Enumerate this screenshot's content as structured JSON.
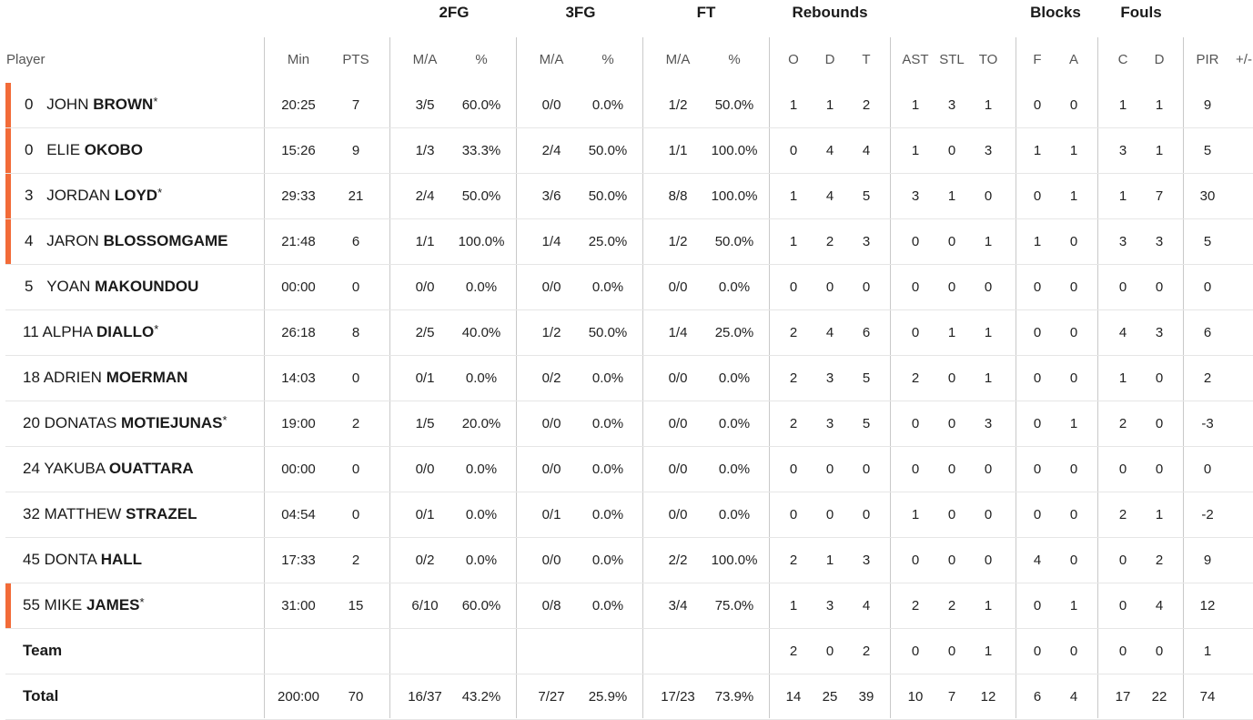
{
  "groups": [
    {
      "key": "2fg",
      "label": "2FG"
    },
    {
      "key": "3fg",
      "label": "3FG"
    },
    {
      "key": "ft",
      "label": "FT"
    },
    {
      "key": "reb",
      "label": "Rebounds"
    },
    {
      "key": "blk",
      "label": "Blocks"
    },
    {
      "key": "fouls",
      "label": "Fouls"
    }
  ],
  "columns": {
    "player": "Player",
    "min": "Min",
    "pts": "PTS",
    "fg2_ma": "M/A",
    "fg2_pct": "%",
    "fg3_ma": "M/A",
    "fg3_pct": "%",
    "ft_ma": "M/A",
    "ft_pct": "%",
    "reb_o": "O",
    "reb_d": "D",
    "reb_t": "T",
    "ast": "AST",
    "stl": "STL",
    "to": "TO",
    "blk_f": "F",
    "blk_a": "A",
    "foul_c": "C",
    "foul_d": "D",
    "pir": "PIR",
    "pm": "+/-"
  },
  "accent_color": "#f26b38",
  "players": [
    {
      "num": "0",
      "first": "JOHN",
      "last": "BROWN",
      "starter": true,
      "star": "*",
      "min": "20:25",
      "pts": "7",
      "fg2_ma": "3/5",
      "fg2_pct": "60.0%",
      "fg3_ma": "0/0",
      "fg3_pct": "0.0%",
      "ft_ma": "1/2",
      "ft_pct": "50.0%",
      "reb_o": "1",
      "reb_d": "1",
      "reb_t": "2",
      "ast": "1",
      "stl": "3",
      "to": "1",
      "blk_f": "0",
      "blk_a": "0",
      "foul_c": "1",
      "foul_d": "1",
      "pir": "9"
    },
    {
      "num": "0",
      "first": "ELIE",
      "last": "OKOBO",
      "starter": true,
      "star": "",
      "min": "15:26",
      "pts": "9",
      "fg2_ma": "1/3",
      "fg2_pct": "33.3%",
      "fg3_ma": "2/4",
      "fg3_pct": "50.0%",
      "ft_ma": "1/1",
      "ft_pct": "100.0%",
      "reb_o": "0",
      "reb_d": "4",
      "reb_t": "4",
      "ast": "1",
      "stl": "0",
      "to": "3",
      "blk_f": "1",
      "blk_a": "1",
      "foul_c": "3",
      "foul_d": "1",
      "pir": "5"
    },
    {
      "num": "3",
      "first": "JORDAN",
      "last": "LOYD",
      "starter": true,
      "star": "*",
      "min": "29:33",
      "pts": "21",
      "fg2_ma": "2/4",
      "fg2_pct": "50.0%",
      "fg3_ma": "3/6",
      "fg3_pct": "50.0%",
      "ft_ma": "8/8",
      "ft_pct": "100.0%",
      "reb_o": "1",
      "reb_d": "4",
      "reb_t": "5",
      "ast": "3",
      "stl": "1",
      "to": "0",
      "blk_f": "0",
      "blk_a": "1",
      "foul_c": "1",
      "foul_d": "7",
      "pir": "30"
    },
    {
      "num": "4",
      "first": "JARON",
      "last": "BLOSSOMGAME",
      "starter": true,
      "star": "",
      "min": "21:48",
      "pts": "6",
      "fg2_ma": "1/1",
      "fg2_pct": "100.0%",
      "fg3_ma": "1/4",
      "fg3_pct": "25.0%",
      "ft_ma": "1/2",
      "ft_pct": "50.0%",
      "reb_o": "1",
      "reb_d": "2",
      "reb_t": "3",
      "ast": "0",
      "stl": "0",
      "to": "1",
      "blk_f": "1",
      "blk_a": "0",
      "foul_c": "3",
      "foul_d": "3",
      "pir": "5"
    },
    {
      "num": "5",
      "first": "YOAN",
      "last": "MAKOUNDOU",
      "starter": false,
      "star": "",
      "min": "00:00",
      "pts": "0",
      "fg2_ma": "0/0",
      "fg2_pct": "0.0%",
      "fg3_ma": "0/0",
      "fg3_pct": "0.0%",
      "ft_ma": "0/0",
      "ft_pct": "0.0%",
      "reb_o": "0",
      "reb_d": "0",
      "reb_t": "0",
      "ast": "0",
      "stl": "0",
      "to": "0",
      "blk_f": "0",
      "blk_a": "0",
      "foul_c": "0",
      "foul_d": "0",
      "pir": "0"
    },
    {
      "num": "11",
      "first": "ALPHA",
      "last": "DIALLO",
      "starter": false,
      "star": "*",
      "min": "26:18",
      "pts": "8",
      "fg2_ma": "2/5",
      "fg2_pct": "40.0%",
      "fg3_ma": "1/2",
      "fg3_pct": "50.0%",
      "ft_ma": "1/4",
      "ft_pct": "25.0%",
      "reb_o": "2",
      "reb_d": "4",
      "reb_t": "6",
      "ast": "0",
      "stl": "1",
      "to": "1",
      "blk_f": "0",
      "blk_a": "0",
      "foul_c": "4",
      "foul_d": "3",
      "pir": "6"
    },
    {
      "num": "18",
      "first": "ADRIEN",
      "last": "MOERMAN",
      "starter": false,
      "star": "",
      "min": "14:03",
      "pts": "0",
      "fg2_ma": "0/1",
      "fg2_pct": "0.0%",
      "fg3_ma": "0/2",
      "fg3_pct": "0.0%",
      "ft_ma": "0/0",
      "ft_pct": "0.0%",
      "reb_o": "2",
      "reb_d": "3",
      "reb_t": "5",
      "ast": "2",
      "stl": "0",
      "to": "1",
      "blk_f": "0",
      "blk_a": "0",
      "foul_c": "1",
      "foul_d": "0",
      "pir": "2"
    },
    {
      "num": "20",
      "first": "DONATAS",
      "last": "MOTIEJUNAS",
      "starter": false,
      "star": "*",
      "min": "19:00",
      "pts": "2",
      "fg2_ma": "1/5",
      "fg2_pct": "20.0%",
      "fg3_ma": "0/0",
      "fg3_pct": "0.0%",
      "ft_ma": "0/0",
      "ft_pct": "0.0%",
      "reb_o": "2",
      "reb_d": "3",
      "reb_t": "5",
      "ast": "0",
      "stl": "0",
      "to": "3",
      "blk_f": "0",
      "blk_a": "1",
      "foul_c": "2",
      "foul_d": "0",
      "pir": "-3"
    },
    {
      "num": "24",
      "first": "YAKUBA",
      "last": "OUATTARA",
      "starter": false,
      "star": "",
      "min": "00:00",
      "pts": "0",
      "fg2_ma": "0/0",
      "fg2_pct": "0.0%",
      "fg3_ma": "0/0",
      "fg3_pct": "0.0%",
      "ft_ma": "0/0",
      "ft_pct": "0.0%",
      "reb_o": "0",
      "reb_d": "0",
      "reb_t": "0",
      "ast": "0",
      "stl": "0",
      "to": "0",
      "blk_f": "0",
      "blk_a": "0",
      "foul_c": "0",
      "foul_d": "0",
      "pir": "0"
    },
    {
      "num": "32",
      "first": "MATTHEW",
      "last": "STRAZEL",
      "starter": false,
      "star": "",
      "min": "04:54",
      "pts": "0",
      "fg2_ma": "0/1",
      "fg2_pct": "0.0%",
      "fg3_ma": "0/1",
      "fg3_pct": "0.0%",
      "ft_ma": "0/0",
      "ft_pct": "0.0%",
      "reb_o": "0",
      "reb_d": "0",
      "reb_t": "0",
      "ast": "1",
      "stl": "0",
      "to": "0",
      "blk_f": "0",
      "blk_a": "0",
      "foul_c": "2",
      "foul_d": "1",
      "pir": "-2"
    },
    {
      "num": "45",
      "first": "DONTA",
      "last": "HALL",
      "starter": false,
      "star": "",
      "min": "17:33",
      "pts": "2",
      "fg2_ma": "0/2",
      "fg2_pct": "0.0%",
      "fg3_ma": "0/0",
      "fg3_pct": "0.0%",
      "ft_ma": "2/2",
      "ft_pct": "100.0%",
      "reb_o": "2",
      "reb_d": "1",
      "reb_t": "3",
      "ast": "0",
      "stl": "0",
      "to": "0",
      "blk_f": "4",
      "blk_a": "0",
      "foul_c": "0",
      "foul_d": "2",
      "pir": "9"
    },
    {
      "num": "55",
      "first": "MIKE",
      "last": "JAMES",
      "starter": true,
      "star": "*",
      "min": "31:00",
      "pts": "15",
      "fg2_ma": "6/10",
      "fg2_pct": "60.0%",
      "fg3_ma": "0/8",
      "fg3_pct": "0.0%",
      "ft_ma": "3/4",
      "ft_pct": "75.0%",
      "reb_o": "1",
      "reb_d": "3",
      "reb_t": "4",
      "ast": "2",
      "stl": "2",
      "to": "1",
      "blk_f": "0",
      "blk_a": "1",
      "foul_c": "0",
      "foul_d": "4",
      "pir": "12"
    }
  ],
  "team": {
    "label": "Team",
    "reb_o": "2",
    "reb_d": "0",
    "reb_t": "2",
    "ast": "0",
    "stl": "0",
    "to": "1",
    "blk_f": "0",
    "blk_a": "0",
    "foul_c": "0",
    "foul_d": "0",
    "pir": "1"
  },
  "total": {
    "label": "Total",
    "min": "200:00",
    "pts": "70",
    "fg2_ma": "16/37",
    "fg2_pct": "43.2%",
    "fg3_ma": "7/27",
    "fg3_pct": "25.9%",
    "ft_ma": "17/23",
    "ft_pct": "73.9%",
    "reb_o": "14",
    "reb_d": "25",
    "reb_t": "39",
    "ast": "10",
    "stl": "7",
    "to": "12",
    "blk_f": "6",
    "blk_a": "4",
    "foul_c": "17",
    "foul_d": "22",
    "pir": "74"
  }
}
